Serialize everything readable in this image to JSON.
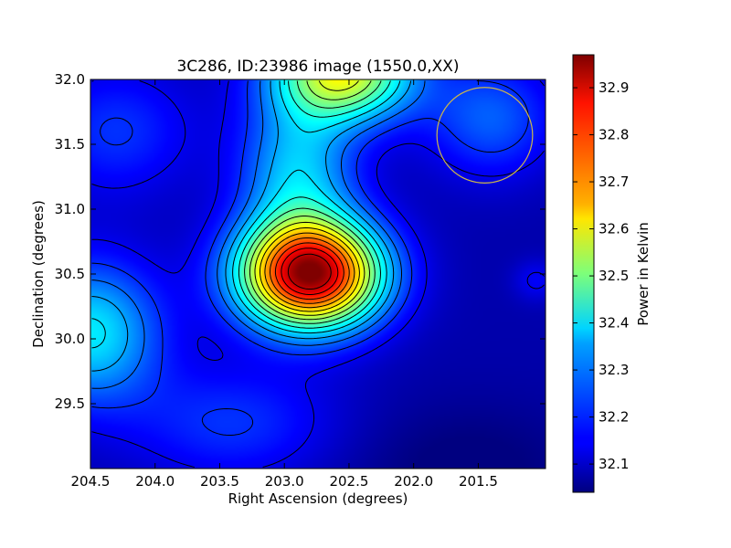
{
  "chart_data": {
    "type": "heatmap",
    "title": "3C286, ID:23986 image (1550.0,XX)",
    "xlabel": "Right Ascension (degrees)",
    "ylabel": "Declination (degrees)",
    "xlim": [
      204.5,
      200.98
    ],
    "ylim": [
      29.0,
      32.0
    ],
    "x_ticks": [
      {
        "value": 204.5,
        "label": "204.5"
      },
      {
        "value": 204.0,
        "label": "204.0"
      },
      {
        "value": 203.5,
        "label": "203.5"
      },
      {
        "value": 203.0,
        "label": "203.0"
      },
      {
        "value": 202.5,
        "label": "202.5"
      },
      {
        "value": 202.0,
        "label": "202.0"
      },
      {
        "value": 201.5,
        "label": "201.5"
      }
    ],
    "y_ticks": [
      {
        "value": 29.5,
        "label": "29.5"
      },
      {
        "value": 30.0,
        "label": "30.0"
      },
      {
        "value": 30.5,
        "label": "30.5"
      },
      {
        "value": 31.0,
        "label": "31.0"
      },
      {
        "value": 31.5,
        "label": "31.5"
      },
      {
        "value": 32.0,
        "label": "32.0"
      }
    ],
    "colorbar": {
      "label": "Power in Kelvin",
      "range": [
        32.04,
        32.97
      ],
      "colormap": "jet",
      "ticks": [
        {
          "value": 32.1,
          "label": "32.1"
        },
        {
          "value": 32.2,
          "label": "32.2"
        },
        {
          "value": 32.3,
          "label": "32.3"
        },
        {
          "value": 32.4,
          "label": "32.4"
        },
        {
          "value": 32.5,
          "label": "32.5"
        },
        {
          "value": 32.6,
          "label": "32.6"
        },
        {
          "value": 32.7,
          "label": "32.7"
        },
        {
          "value": 32.8,
          "label": "32.8"
        },
        {
          "value": 32.9,
          "label": "32.9"
        }
      ]
    },
    "peak": {
      "ra": 202.8,
      "dec": 30.5,
      "value": 32.96
    },
    "beam_circle": {
      "ra": 201.45,
      "dec": 31.57,
      "radius_deg": 0.37,
      "color": "#cdb74a"
    },
    "contour_color": "#000000"
  }
}
